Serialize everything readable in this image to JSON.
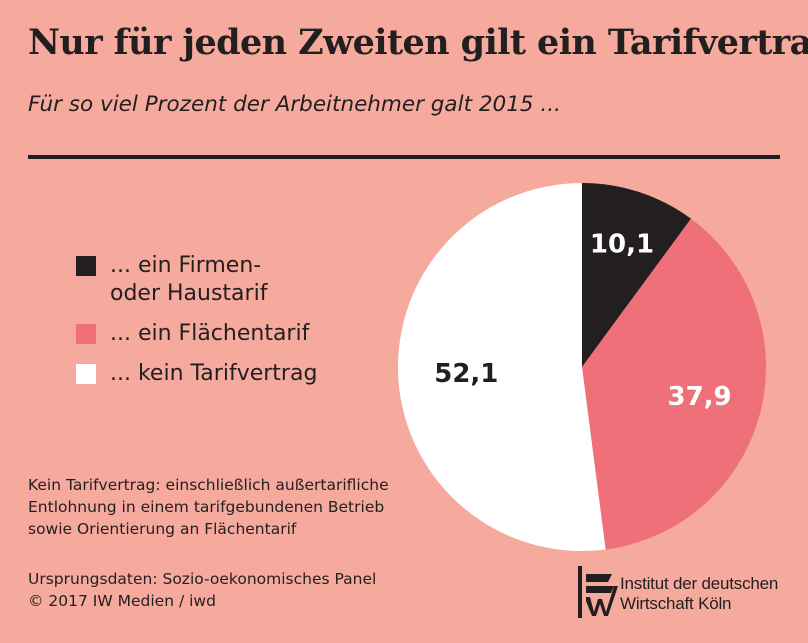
{
  "header": {
    "title": "Nur für jeden Zweiten gilt ein Tarifvertrag",
    "subtitle": "Für so viel Prozent der Arbeitnehmer galt 2015 ..."
  },
  "chart_data": {
    "type": "pie",
    "categories": [
      "... ein Firmen-\noder Haustarif",
      "... ein Flächentarif",
      "... kein Tarifvertrag"
    ],
    "values": [
      10.1,
      37.9,
      52.1
    ],
    "data_labels": [
      "10,1",
      "37,9",
      "52,1"
    ],
    "colors": [
      "#231f20",
      "#f0707a",
      "#ffffff"
    ],
    "label_colors": [
      "#ffffff",
      "#ffffff",
      "#231f20"
    ],
    "start_angle": "12 o'clock",
    "direction": "clockwise",
    "legend_position": "left"
  },
  "note": {
    "lines": [
      "Kein Tarifvertrag: einschließlich außertarifliche",
      "Entlohnung in einem tarifgebundenen Betrieb",
      "sowie Orientierung an Flächentarif"
    ]
  },
  "source": {
    "lines": [
      "Ursprungsdaten: Sozio-oekonomisches Panel",
      "© 2017 IW Medien / iwd"
    ]
  },
  "logo": {
    "line1": "Institut der deutschen",
    "line2": "Wirtschaft Köln",
    "icon": "iw-logo-icon"
  }
}
